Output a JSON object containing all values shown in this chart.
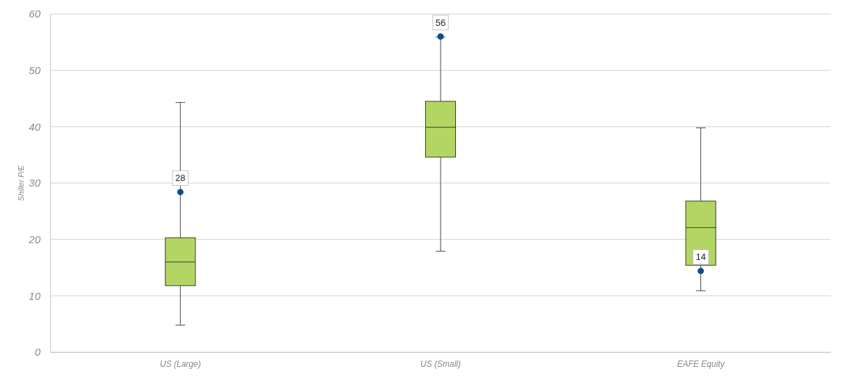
{
  "chart_data": {
    "type": "box",
    "ylabel": "Shiller P/E",
    "categories": [
      "US (Large)",
      "US (Small)",
      "EAFE Equity"
    ],
    "ylim": [
      0,
      60
    ],
    "yticks": [
      0,
      10,
      20,
      30,
      40,
      50,
      60
    ],
    "grid": "y",
    "marker": "circle",
    "series": [
      {
        "color": "#b2d564",
        "boxes": [
          {
            "low": 4.8,
            "q1": 11.8,
            "median": 16.0,
            "q3": 20.3,
            "high": 44.3
          },
          {
            "low": 17.9,
            "q1": 34.6,
            "median": 39.9,
            "q3": 44.5,
            "high": 55.9
          },
          {
            "low": 10.9,
            "q1": 15.4,
            "median": 22.1,
            "q3": 26.8,
            "high": 39.8
          }
        ]
      },
      {
        "type": "scatter",
        "color": "#0b4d8c",
        "x": [
          "US (Large)",
          "US (Small)",
          "EAFE Equity"
        ],
        "values": [
          28.4,
          56,
          14.4
        ],
        "value_labels": [
          "28",
          "56",
          "14"
        ]
      }
    ]
  }
}
